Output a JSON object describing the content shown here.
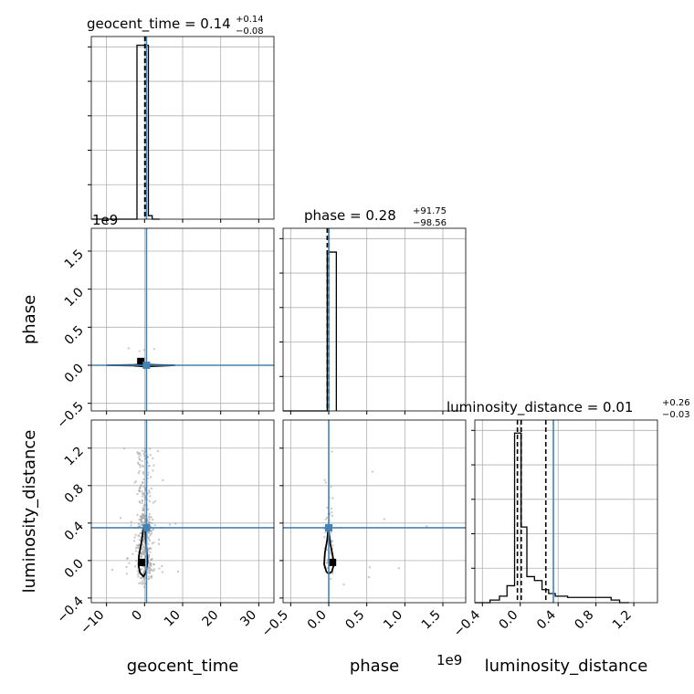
{
  "chart_data": {
    "type": "corner",
    "parameters": [
      "geocent_time",
      "phase",
      "luminosity_distance"
    ],
    "injection_color": "#4682b4",
    "grid": true,
    "panels": [
      {
        "id": "geocent_time",
        "kind": "hist1d",
        "title": "geocent_time = 0.14",
        "title_sup": "+0.14",
        "title_sub": "−0.08",
        "xlim": [
          -14,
          34
        ],
        "ylim": [
          0,
          1.05
        ],
        "hist": {
          "edges": [
            -4,
            -2,
            0,
            1,
            2,
            4
          ],
          "values": [
            0.0,
            1.0,
            1.0,
            0.02,
            0.0
          ]
        },
        "quantile_lines": [
          0.06,
          0.14,
          0.28
        ],
        "injection": 0.5
      },
      {
        "id": "phase",
        "kind": "hist1d",
        "title": "phase = 0.28",
        "title_sup": "+91.75",
        "title_sub": "−98.56",
        "xlim": [
          -0.6,
          1.8
        ],
        "ylim": [
          0,
          1.15
        ],
        "hist": {
          "edges": [
            -0.02,
            0.1
          ],
          "values": [
            1.0
          ]
        },
        "quantile_lines": [
          -0.02,
          0.0
        ],
        "injection": 0.0
      },
      {
        "id": "luminosity_distance",
        "kind": "hist1d",
        "title": "luminosity_distance = 0.01",
        "title_sup": "+0.26",
        "title_sub": "−0.03",
        "xlim": [
          -0.48,
          1.45
        ],
        "ylim": [
          0,
          1.4
        ],
        "hist": {
          "edges": [
            -0.43,
            -0.32,
            -0.22,
            -0.14,
            -0.06,
            0.01,
            0.07,
            0.15,
            0.23,
            0.3,
            0.37,
            0.43,
            0.5,
            0.56,
            0.64,
            0.72,
            0.8,
            0.86,
            0.96,
            1.05,
            1.15
          ],
          "values": [
            0.0,
            0.02,
            0.05,
            0.13,
            1.3,
            0.58,
            0.2,
            0.17,
            0.1,
            0.07,
            0.05,
            0.05,
            0.04,
            0.04,
            0.04,
            0.04,
            0.04,
            0.04,
            0.02,
            0.0
          ]
        },
        "quantile_lines": [
          -0.03,
          0.01,
          0.27
        ],
        "injection": 0.35
      },
      {
        "id": "phase_vs_geocent_time",
        "kind": "hist2d",
        "x": "geocent_time",
        "y": "phase",
        "xlim": [
          -14,
          34
        ],
        "ylim": [
          -0.6,
          1.8
        ],
        "injection": [
          0.5,
          0.0
        ],
        "best_fit_marker": [
          -1,
          0.05
        ],
        "contour": [
          [
            -10,
            0.0
          ],
          [
            -3,
            0.005
          ],
          [
            0,
            0.01
          ],
          [
            3,
            0.005
          ],
          [
            8,
            0.0
          ],
          [
            3,
            -0.01
          ],
          [
            0,
            -0.015
          ],
          [
            -3,
            -0.005
          ],
          [
            -10,
            0.0
          ]
        ]
      },
      {
        "id": "luminosity_distance_vs_geocent_time",
        "kind": "hist2d",
        "x": "geocent_time",
        "y": "luminosity_distance",
        "xlim": [
          -14,
          34
        ],
        "ylim": [
          -0.45,
          1.5
        ],
        "injection": [
          0.5,
          0.35
        ],
        "best_fit_marker": [
          -0.8,
          -0.02
        ],
        "contour": [
          [
            -0.3,
            0.35
          ],
          [
            -0.8,
            0.2
          ],
          [
            -1.5,
            0.05
          ],
          [
            -1.6,
            -0.05
          ],
          [
            -1.2,
            -0.13
          ],
          [
            -0.3,
            -0.17
          ],
          [
            0.3,
            -0.13
          ],
          [
            0.8,
            -0.02
          ],
          [
            0.5,
            0.12
          ],
          [
            0.3,
            0.25
          ],
          [
            0.2,
            0.35
          ],
          [
            -0.3,
            0.35
          ]
        ]
      },
      {
        "id": "luminosity_distance_vs_phase",
        "kind": "hist2d",
        "x": "phase",
        "y": "luminosity_distance",
        "xlim": [
          -0.6,
          1.8
        ],
        "ylim": [
          -0.45,
          1.5
        ],
        "injection": [
          0.0,
          0.35
        ],
        "best_fit_marker": [
          0.05,
          -0.02
        ],
        "contour": [
          [
            -0.005,
            0.35
          ],
          [
            -0.02,
            0.22
          ],
          [
            -0.05,
            0.08
          ],
          [
            -0.06,
            -0.04
          ],
          [
            -0.03,
            -0.12
          ],
          [
            0.0,
            -0.14
          ],
          [
            0.04,
            -0.12
          ],
          [
            0.07,
            -0.04
          ],
          [
            0.05,
            0.06
          ],
          [
            0.02,
            0.18
          ],
          [
            -0.005,
            0.35
          ]
        ]
      }
    ],
    "xticks": {
      "geocent_time": [
        -10,
        0,
        10,
        20,
        30
      ],
      "phase": [
        -0.5,
        0.0,
        0.5,
        1.0,
        1.5
      ],
      "luminosity_distance": [
        -0.4,
        0.0,
        0.4,
        0.8,
        1.2
      ]
    },
    "xtick_labels": {
      "geocent_time": [
        "−10",
        "0",
        "10",
        "20",
        "30"
      ],
      "phase": [
        "−0.5",
        "0.0",
        "0.5",
        "1.0",
        "1.5"
      ],
      "luminosity_distance": [
        "−0.4",
        "0.0",
        "0.4",
        "0.8",
        "1.2"
      ]
    },
    "yticks": {
      "phase": [
        -0.5,
        0.0,
        0.5,
        1.0,
        1.5
      ],
      "luminosity_distance": [
        -0.4,
        0.0,
        0.4,
        0.8,
        1.2
      ]
    },
    "ytick_labels": {
      "phase": [
        "−0.5",
        "0.0",
        "0.5",
        "1.0",
        "1.5"
      ],
      "luminosity_distance": [
        "−0.4",
        "0.0",
        "0.4",
        "0.8",
        "1.2"
      ]
    },
    "axis_labels": {
      "x": [
        "geocent_time",
        "phase",
        "luminosity_distance"
      ],
      "y": [
        "phase",
        "luminosity_distance"
      ]
    },
    "offset_labels": [
      "1e9",
      "1e9"
    ]
  }
}
